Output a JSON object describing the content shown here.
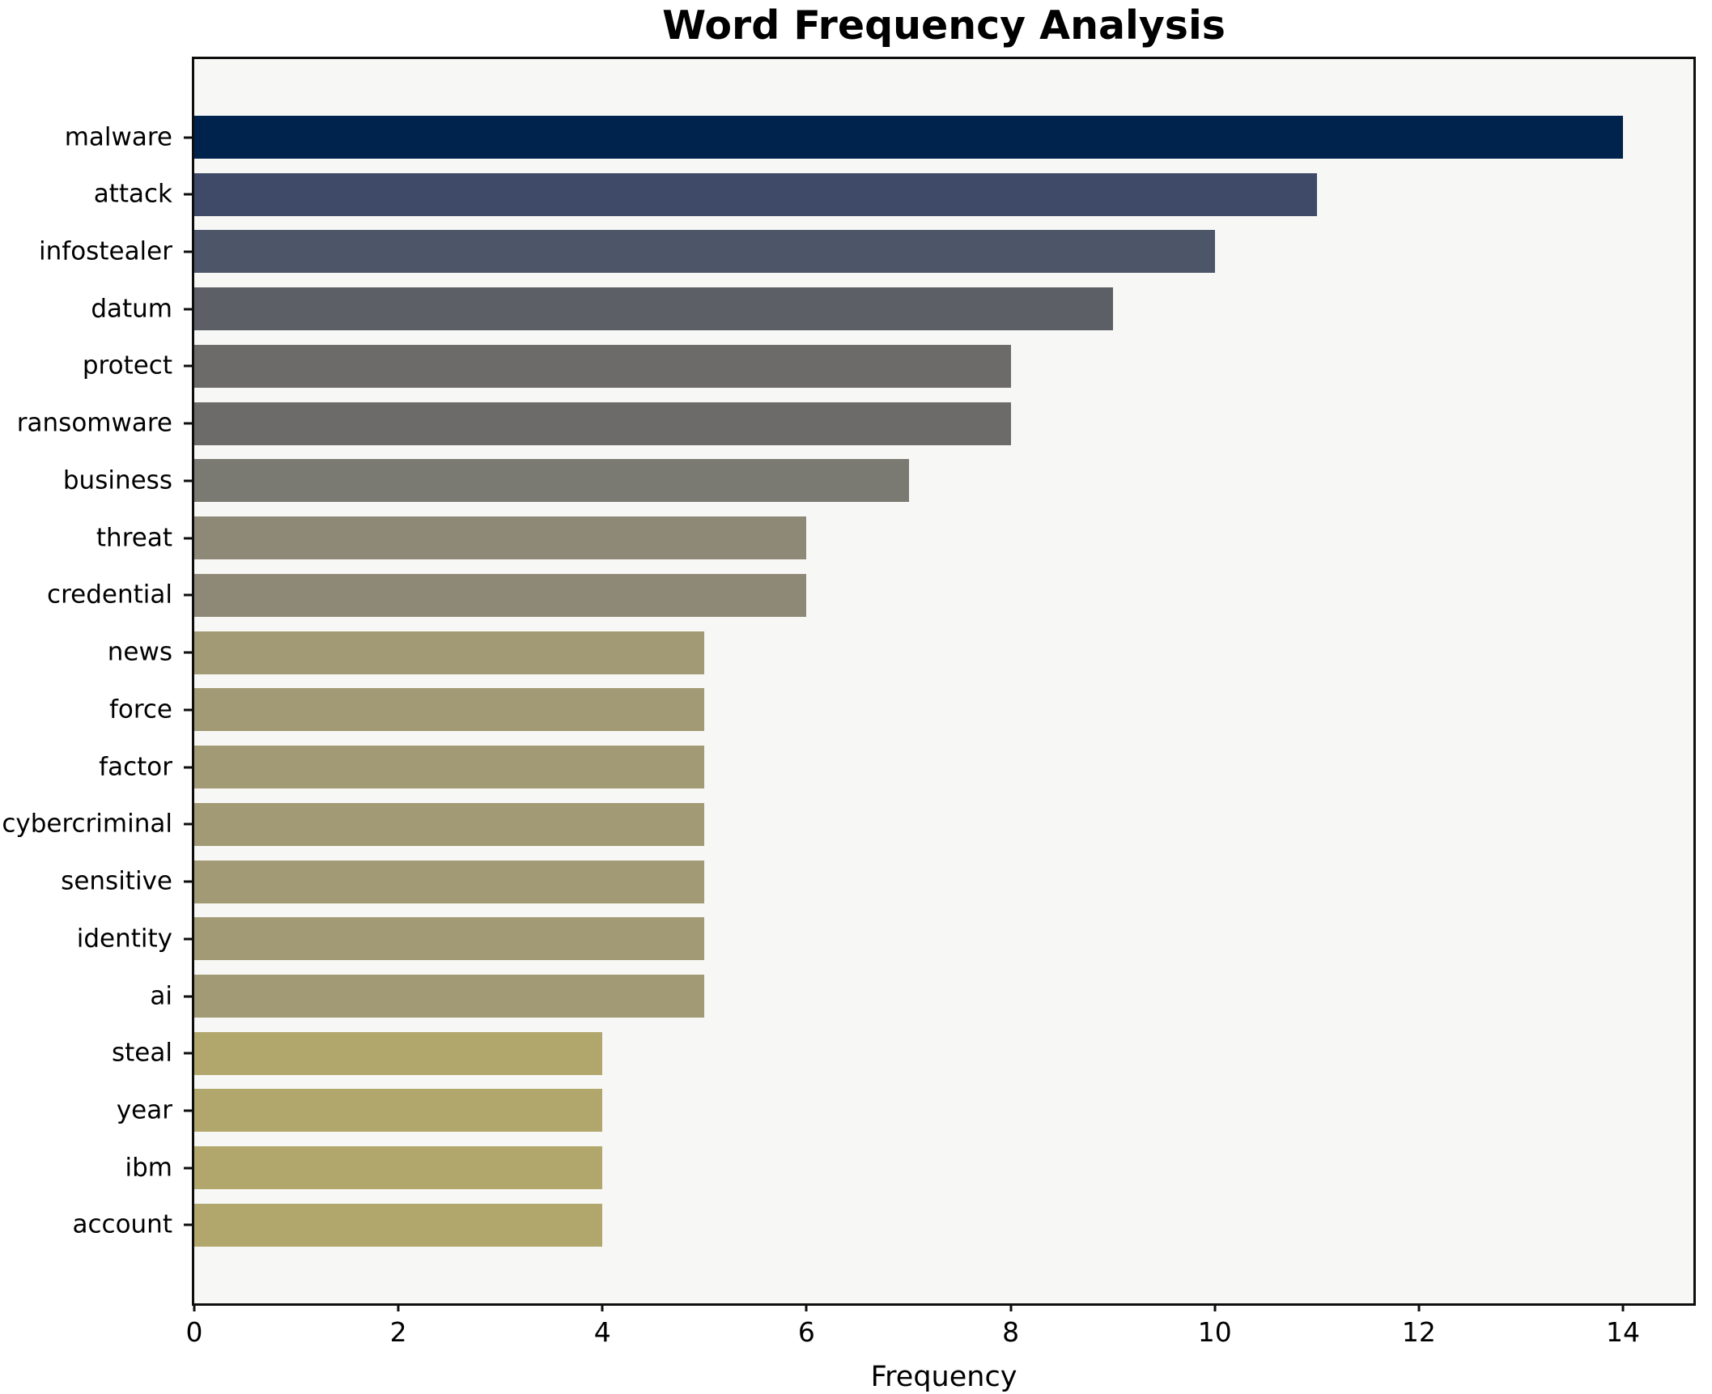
{
  "chart_data": {
    "type": "bar",
    "orientation": "horizontal",
    "title": "Word Frequency Analysis",
    "xlabel": "Frequency",
    "ylabel": "",
    "categories": [
      "malware",
      "attack",
      "infostealer",
      "datum",
      "protect",
      "ransomware",
      "business",
      "threat",
      "credential",
      "news",
      "force",
      "factor",
      "cybercriminal",
      "sensitive",
      "identity",
      "ai",
      "steal",
      "year",
      "ibm",
      "account"
    ],
    "values": [
      14,
      11,
      10,
      9,
      8,
      8,
      7,
      6,
      6,
      5,
      5,
      5,
      5,
      5,
      5,
      5,
      4,
      4,
      4,
      4
    ],
    "bar_colors": [
      "#00234e",
      "#3e4a68",
      "#4d5669",
      "#5c5f66",
      "#6c6b6a",
      "#6c6b6a",
      "#7b7a72",
      "#8e8977",
      "#8e8977",
      "#a19a74",
      "#a19a74",
      "#a19a74",
      "#a19a74",
      "#a19a74",
      "#a19a74",
      "#a19a74",
      "#b1a66b",
      "#b1a66b",
      "#b1a66b",
      "#b1a66b"
    ],
    "xticks": [
      0,
      2,
      4,
      6,
      8,
      10,
      12,
      14
    ],
    "xlim": [
      0,
      14.69
    ],
    "grid": false,
    "legend": null,
    "colormap_note": "cividis-style gradient, high value = dark navy, low value = khaki",
    "colors": {
      "figure_background": "#ffffff",
      "plot_background": "#f7f7f5",
      "axis": "#0e0e0e",
      "text": "#000000"
    }
  }
}
